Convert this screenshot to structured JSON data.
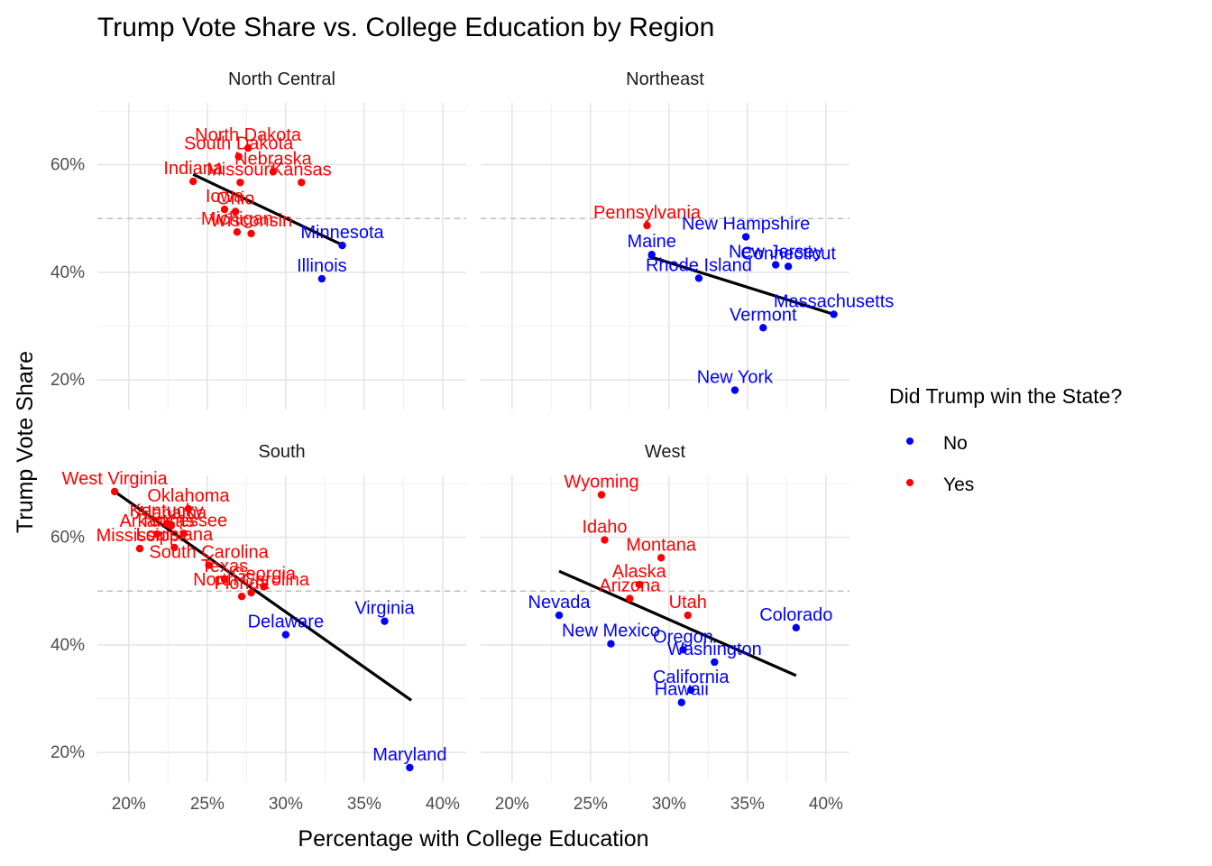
{
  "chart_data": {
    "type": "scatter",
    "title": "Trump Vote Share vs. College Education by Region",
    "xlabel": "Percentage with College Education",
    "ylabel": "Trump Vote Share",
    "xlim": [
      0.18,
      0.415
    ],
    "ylim": [
      0.145,
      0.715
    ],
    "x_ticks": [
      0.2,
      0.25,
      0.3,
      0.35,
      0.4
    ],
    "x_tick_labels": [
      "20%",
      "25%",
      "30%",
      "35%",
      "40%"
    ],
    "y_ticks": [
      0.2,
      0.4,
      0.6
    ],
    "y_tick_labels": [
      "20%",
      "40%",
      "60%"
    ],
    "reference_line_y": 0.5,
    "grid": true,
    "legend": {
      "title": "Did Trump win the State?",
      "placement": "right",
      "entries": [
        {
          "label": "No",
          "color": "#0000ff"
        },
        {
          "label": "Yes",
          "color": "#ff0000"
        }
      ]
    },
    "colors": {
      "No": "#0000ff",
      "Yes": "#ff0000",
      "fit_line": "#000000",
      "reference_line": "#bebebe"
    },
    "facets": [
      {
        "name": "North Central",
        "fit": [
          [
            0.241,
            0.582
          ],
          [
            0.336,
            0.451
          ]
        ],
        "points": [
          {
            "state": "North Dakota",
            "x": 0.276,
            "y": 0.631,
            "won": "Yes"
          },
          {
            "state": "South Dakota",
            "x": 0.27,
            "y": 0.615,
            "won": "Yes"
          },
          {
            "state": "Nebraska",
            "x": 0.292,
            "y": 0.587,
            "won": "Yes"
          },
          {
            "state": "Indiana",
            "x": 0.241,
            "y": 0.569,
            "won": "Yes"
          },
          {
            "state": "Missouri",
            "x": 0.271,
            "y": 0.567,
            "won": "Yes"
          },
          {
            "state": "Kansas",
            "x": 0.31,
            "y": 0.567,
            "won": "Yes"
          },
          {
            "state": "Ohio",
            "x": 0.268,
            "y": 0.513,
            "won": "Yes"
          },
          {
            "state": "Iowa",
            "x": 0.261,
            "y": 0.517,
            "won": "Yes"
          },
          {
            "state": "Michigan",
            "x": 0.269,
            "y": 0.475,
            "won": "Yes"
          },
          {
            "state": "Wisconsin",
            "x": 0.278,
            "y": 0.472,
            "won": "Yes"
          },
          {
            "state": "Minnesota",
            "x": 0.336,
            "y": 0.45,
            "won": "No"
          },
          {
            "state": "Illinois",
            "x": 0.323,
            "y": 0.388,
            "won": "No"
          }
        ]
      },
      {
        "name": "Northeast",
        "fit": [
          [
            0.287,
            0.43
          ],
          [
            0.405,
            0.322
          ]
        ],
        "points": [
          {
            "state": "Pennsylvania",
            "x": 0.286,
            "y": 0.487,
            "won": "Yes"
          },
          {
            "state": "New Hampshire",
            "x": 0.349,
            "y": 0.466,
            "won": "No"
          },
          {
            "state": "Maine",
            "x": 0.289,
            "y": 0.433,
            "won": "No"
          },
          {
            "state": "New Jersey",
            "x": 0.368,
            "y": 0.414,
            "won": "No"
          },
          {
            "state": "Connecticut",
            "x": 0.376,
            "y": 0.411,
            "won": "No"
          },
          {
            "state": "Rhode Island",
            "x": 0.319,
            "y": 0.389,
            "won": "No"
          },
          {
            "state": "Massachusetts",
            "x": 0.405,
            "y": 0.322,
            "won": "No"
          },
          {
            "state": "Vermont",
            "x": 0.36,
            "y": 0.297,
            "won": "No"
          },
          {
            "state": "New York",
            "x": 0.342,
            "y": 0.181,
            "won": "No"
          }
        ]
      },
      {
        "name": "South",
        "fit": [
          [
            0.191,
            0.685
          ],
          [
            0.38,
            0.297
          ]
        ],
        "points": [
          {
            "state": "West Virginia",
            "x": 0.191,
            "y": 0.685,
            "won": "Yes"
          },
          {
            "state": "Oklahoma",
            "x": 0.238,
            "y": 0.653,
            "won": "Yes"
          },
          {
            "state": "Kentucky",
            "x": 0.224,
            "y": 0.625,
            "won": "Yes"
          },
          {
            "state": "Alabama",
            "x": 0.227,
            "y": 0.621,
            "won": "Yes"
          },
          {
            "state": "Tennessee",
            "x": 0.235,
            "y": 0.607,
            "won": "Yes"
          },
          {
            "state": "Arkansas",
            "x": 0.218,
            "y": 0.606,
            "won": "Yes"
          },
          {
            "state": "Louisiana",
            "x": 0.229,
            "y": 0.581,
            "won": "Yes"
          },
          {
            "state": "Mississippi",
            "x": 0.207,
            "y": 0.579,
            "won": "Yes"
          },
          {
            "state": "South Carolina",
            "x": 0.251,
            "y": 0.548,
            "won": "Yes"
          },
          {
            "state": "Texas",
            "x": 0.261,
            "y": 0.522,
            "won": "Yes"
          },
          {
            "state": "Georgia",
            "x": 0.286,
            "y": 0.508,
            "won": "Yes"
          },
          {
            "state": "North Carolina",
            "x": 0.278,
            "y": 0.497,
            "won": "Yes"
          },
          {
            "state": "Florida",
            "x": 0.272,
            "y": 0.49,
            "won": "Yes"
          },
          {
            "state": "Virginia",
            "x": 0.363,
            "y": 0.444,
            "won": "No"
          },
          {
            "state": "Delaware",
            "x": 0.3,
            "y": 0.419,
            "won": "No"
          },
          {
            "state": "Maryland",
            "x": 0.379,
            "y": 0.172,
            "won": "No"
          }
        ]
      },
      {
        "name": "West",
        "fit": [
          [
            0.23,
            0.537
          ],
          [
            0.381,
            0.343
          ]
        ],
        "points": [
          {
            "state": "Wyoming",
            "x": 0.257,
            "y": 0.679,
            "won": "Yes"
          },
          {
            "state": "Idaho",
            "x": 0.259,
            "y": 0.595,
            "won": "Yes"
          },
          {
            "state": "Montana",
            "x": 0.295,
            "y": 0.562,
            "won": "Yes"
          },
          {
            "state": "Alaska",
            "x": 0.281,
            "y": 0.512,
            "won": "Yes"
          },
          {
            "state": "Arizona",
            "x": 0.275,
            "y": 0.486,
            "won": "Yes"
          },
          {
            "state": "Utah",
            "x": 0.312,
            "y": 0.455,
            "won": "Yes"
          },
          {
            "state": "Nevada",
            "x": 0.23,
            "y": 0.455,
            "won": "No"
          },
          {
            "state": "Colorado",
            "x": 0.381,
            "y": 0.432,
            "won": "No"
          },
          {
            "state": "New Mexico",
            "x": 0.263,
            "y": 0.402,
            "won": "No"
          },
          {
            "state": "Oregon",
            "x": 0.309,
            "y": 0.391,
            "won": "No"
          },
          {
            "state": "Washington",
            "x": 0.329,
            "y": 0.368,
            "won": "No"
          },
          {
            "state": "California",
            "x": 0.314,
            "y": 0.316,
            "won": "No"
          },
          {
            "state": "Hawaii",
            "x": 0.308,
            "y": 0.293,
            "won": "No"
          }
        ]
      }
    ]
  }
}
